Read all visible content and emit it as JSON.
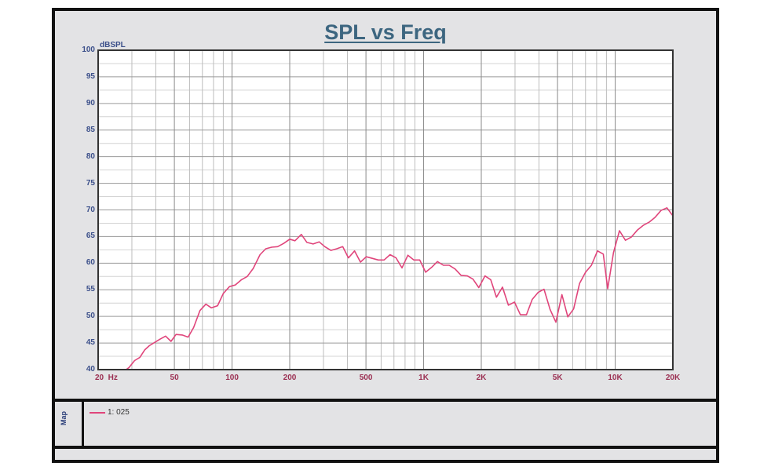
{
  "chart_data": {
    "type": "line",
    "title": "SPL vs Freq",
    "xlabel": "Hz",
    "ylabel": "dBSPL",
    "xscale": "log",
    "xlim": [
      20,
      20000
    ],
    "ylim": [
      40,
      100
    ],
    "grid": true,
    "legend_position": "bottom panel",
    "x_tick_labels": [
      "20  Hz",
      "50",
      "100",
      "200",
      "500",
      "1K",
      "2K",
      "5K",
      "10K",
      "20K"
    ],
    "x_tick_values": [
      20,
      50,
      100,
      200,
      500,
      1000,
      2000,
      5000,
      10000,
      20000
    ],
    "y_tick_labels": [
      "100",
      "95",
      "90",
      "85",
      "80",
      "75",
      "70",
      "65",
      "60",
      "55",
      "50",
      "45",
      "40"
    ],
    "y_tick_values": [
      100,
      95,
      90,
      85,
      80,
      75,
      70,
      65,
      60,
      55,
      50,
      45,
      40
    ],
    "series": [
      {
        "name": "1: 025",
        "color": "#e0457b",
        "x": [
          20,
          28,
          29,
          31,
          33,
          35,
          37,
          39,
          42,
          45,
          48,
          51,
          55,
          59,
          63,
          68,
          73,
          78,
          84,
          90,
          97,
          104,
          112,
          120,
          129,
          140,
          150,
          161,
          173,
          186,
          200,
          213,
          230,
          246,
          265,
          285,
          305,
          328,
          352,
          378,
          405,
          436,
          468,
          502,
          539,
          580,
          622,
          668,
          718,
          771,
          828,
          888,
          954,
          1024,
          1100,
          1180,
          1268,
          1360,
          1460,
          1570,
          1690,
          1810,
          1940,
          2090,
          2240,
          2400,
          2580,
          2770,
          2980,
          3200,
          3440,
          3690,
          3960,
          4250,
          4570,
          4900,
          5270,
          5660,
          6070,
          6520,
          7000,
          7520,
          8080,
          8670,
          9140,
          9800,
          10530,
          11310,
          12140,
          13040,
          14000,
          15040,
          16150,
          17340,
          18620,
          20000
        ],
        "y": [
          40,
          40,
          40.4,
          41.7,
          42.3,
          43.7,
          44.5,
          45,
          45.7,
          46.3,
          45.3,
          46.6,
          46.5,
          46.1,
          47.9,
          51.1,
          52.3,
          51.6,
          52,
          54.3,
          55.6,
          55.9,
          56.9,
          57.5,
          59,
          61.6,
          62.7,
          63,
          63.1,
          63.7,
          64.5,
          64.2,
          65.4,
          63.9,
          63.6,
          64,
          63.1,
          62.4,
          62.7,
          63.1,
          61,
          62.3,
          60.2,
          61.2,
          60.9,
          60.6,
          60.6,
          61.6,
          61,
          59.1,
          61.5,
          60.6,
          60.6,
          58.3,
          59.2,
          60.3,
          59.6,
          59.6,
          58.9,
          57.7,
          57.6,
          57,
          55.4,
          57.6,
          56.9,
          53.6,
          55.5,
          52.1,
          52.7,
          50.3,
          50.3,
          53.2,
          54.5,
          55.1,
          51.3,
          48.9,
          54.1,
          49.9,
          51.4,
          56.2,
          58.3,
          59.6,
          62.3,
          61.7,
          55.2,
          62,
          66.1,
          64.3,
          64.9,
          66.2,
          67.1,
          67.7,
          68.6,
          69.9,
          70.4,
          68.9
        ]
      }
    ]
  },
  "header": {
    "title": "SPL vs Freq"
  },
  "axes": {
    "y_unit": "dBSPL",
    "y_ticks": [
      "100",
      "95",
      "90",
      "85",
      "80",
      "75",
      "70",
      "65",
      "60",
      "55",
      "50",
      "45",
      "40"
    ],
    "x_ticks": [
      "20  Hz",
      "50",
      "100",
      "200",
      "500",
      "1K",
      "2K",
      "5K",
      "10K",
      "20K"
    ]
  },
  "legend": {
    "panel_label": "Map",
    "items": [
      {
        "label": "1: 025",
        "color": "#e0457b"
      }
    ]
  },
  "colors": {
    "curve": "#e0457b",
    "title": "#3d6680",
    "y_axis_text": "#3b4f8a",
    "x_axis_text": "#9b2f52",
    "panel_bg": "#e3e3e5"
  }
}
